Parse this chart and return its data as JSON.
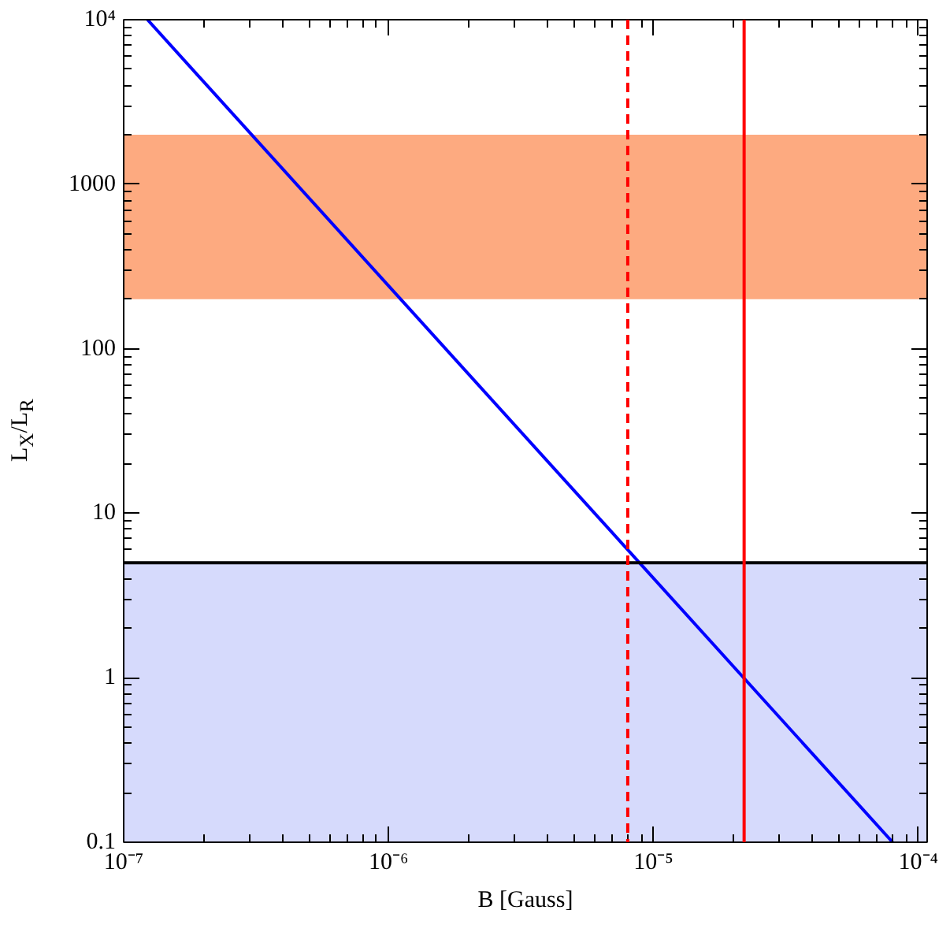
{
  "chart_data": {
    "type": "line",
    "xlabel": "B [Gauss]",
    "ylabel": "L$_{X}$/L$_{R}$",
    "log": "xy",
    "grid": false,
    "xlim": [
      1e-07,
      0.000108
    ],
    "ylim": [
      0.1,
      10000
    ],
    "xticks": [
      {
        "value": 1e-07,
        "label": "10⁻⁷"
      },
      {
        "value": 1e-06,
        "label": "10⁻⁶"
      },
      {
        "value": 1e-05,
        "label": "10⁻⁵"
      },
      {
        "value": 0.0001,
        "label": "10⁻⁴"
      }
    ],
    "yticks": [
      0.1,
      1,
      10,
      100,
      1000,
      {
        "value": 10000,
        "label": "10⁴"
      }
    ],
    "series": [
      {
        "color": "#0000ff",
        "x": [
          1.23e-07,
          8e-05
        ],
        "values": [
          10000,
          0.1
        ],
        "line_style": "solid"
      }
    ],
    "ref_lines": [
      {
        "axis": "y",
        "value": 5,
        "color": "#000000",
        "line_style": "solid"
      },
      {
        "axis": "x",
        "value": 8e-06,
        "color": "#ff0000",
        "line_style": "dashed"
      },
      {
        "axis": "x",
        "value": 2.2e-05,
        "color": "#ff0000",
        "line_style": "solid"
      }
    ],
    "bands": [
      {
        "axis": "y",
        "from": 200,
        "to": 2000,
        "color": "#fdaa80"
      },
      {
        "axis": "y",
        "from": 0.1,
        "to": 5,
        "color": "#d6dafc"
      }
    ]
  }
}
